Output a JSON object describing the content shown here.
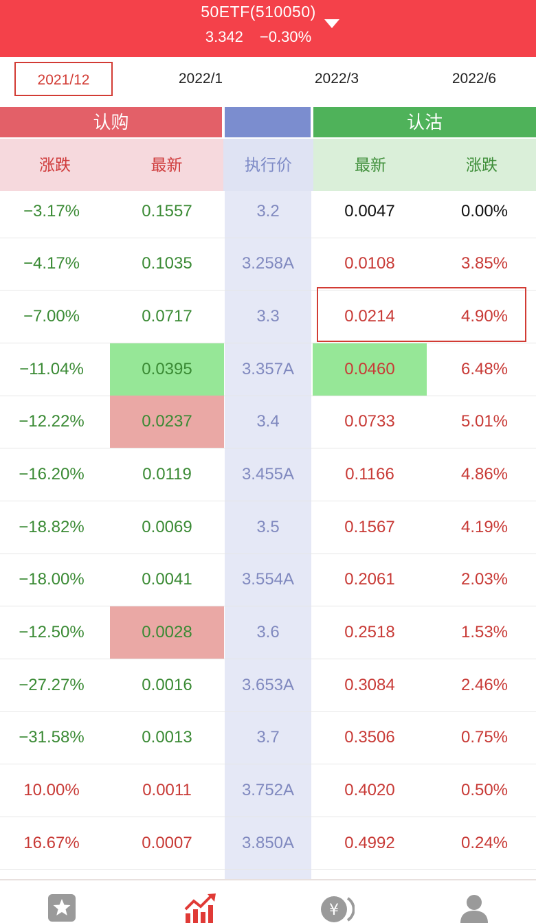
{
  "header": {
    "title": "50ETF(510050)",
    "price": "3.342",
    "change": "−0.30%",
    "dropdown_icon": "caret-down-icon"
  },
  "months": [
    {
      "label": "2021/12",
      "active": true
    },
    {
      "label": "2022/1",
      "active": false
    },
    {
      "label": "2022/3",
      "active": false
    },
    {
      "label": "2022/6",
      "active": false
    }
  ],
  "sections": {
    "call": "认购",
    "put": "认沽"
  },
  "columns": {
    "call_change": "涨跌",
    "call_last": "最新",
    "strike": "执行价",
    "put_last": "最新",
    "put_change": "涨跌"
  },
  "rows": [
    {
      "call_change": "−3.17%",
      "call_last": "0.1557",
      "strike": "3.2",
      "put_last": "0.0047",
      "put_change": "0.00%"
    },
    {
      "call_change": "−4.17%",
      "call_last": "0.1035",
      "strike": "3.258A",
      "put_last": "0.0108",
      "put_change": "3.85%"
    },
    {
      "call_change": "−7.00%",
      "call_last": "0.0717",
      "strike": "3.3",
      "put_last": "0.0214",
      "put_change": "4.90%"
    },
    {
      "call_change": "−11.04%",
      "call_last": "0.0395",
      "strike": "3.357A",
      "put_last": "0.0460",
      "put_change": "6.48%"
    },
    {
      "call_change": "−12.22%",
      "call_last": "0.0237",
      "strike": "3.4",
      "put_last": "0.0733",
      "put_change": "5.01%"
    },
    {
      "call_change": "−16.20%",
      "call_last": "0.0119",
      "strike": "3.455A",
      "put_last": "0.1166",
      "put_change": "4.86%"
    },
    {
      "call_change": "−18.82%",
      "call_last": "0.0069",
      "strike": "3.5",
      "put_last": "0.1567",
      "put_change": "4.19%"
    },
    {
      "call_change": "−18.00%",
      "call_last": "0.0041",
      "strike": "3.554A",
      "put_last": "0.2061",
      "put_change": "2.03%"
    },
    {
      "call_change": "−12.50%",
      "call_last": "0.0028",
      "strike": "3.6",
      "put_last": "0.2518",
      "put_change": "1.53%"
    },
    {
      "call_change": "−27.27%",
      "call_last": "0.0016",
      "strike": "3.653A",
      "put_last": "0.3084",
      "put_change": "2.46%"
    },
    {
      "call_change": "−31.58%",
      "call_last": "0.0013",
      "strike": "3.7",
      "put_last": "0.3506",
      "put_change": "0.75%"
    },
    {
      "call_change": "10.00%",
      "call_last": "0.0011",
      "strike": "3.752A",
      "put_last": "0.4020",
      "put_change": "0.50%"
    },
    {
      "call_change": "16.67%",
      "call_last": "0.0007",
      "strike": "3.850A",
      "put_last": "0.4992",
      "put_change": "0.24%"
    }
  ],
  "colors": {
    "brand_red": "#f4414a",
    "rise": "#c83a36",
    "fall": "#3a8a34",
    "flat": "#111111",
    "highlight_green": "#96e797",
    "highlight_red": "#eaa8a5"
  },
  "tabbar": [
    {
      "icon": "star-icon"
    },
    {
      "icon": "trend-chart-icon",
      "active": true
    },
    {
      "icon": "yuan-coin-icon"
    },
    {
      "icon": "user-icon"
    }
  ]
}
